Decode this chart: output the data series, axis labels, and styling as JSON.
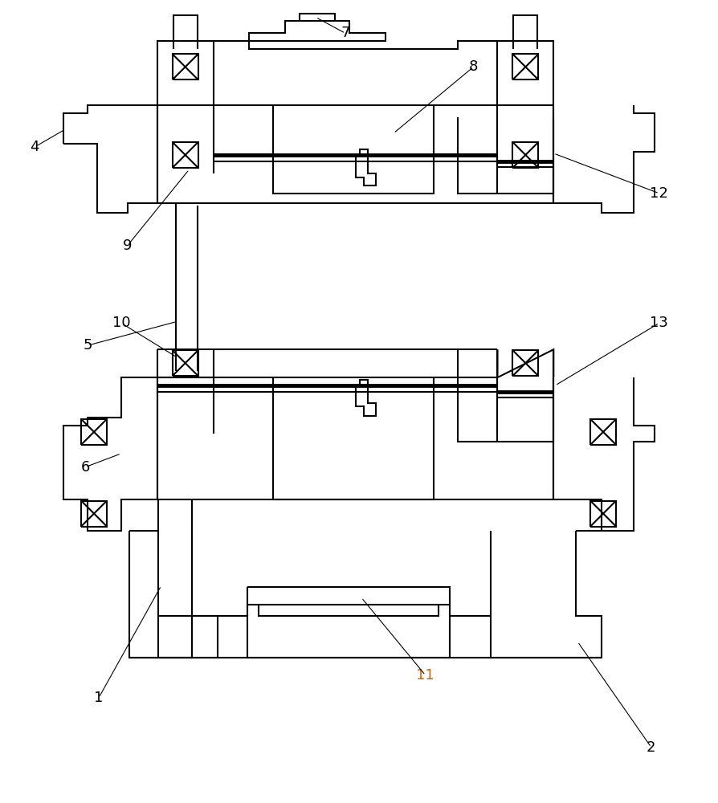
{
  "bg_color": "#ffffff",
  "line_color": "#000000",
  "lw": 1.5,
  "lw_thick": 3.5,
  "fig_w": 8.95,
  "fig_h": 10.0,
  "dpi": 100,
  "font_size": 13,
  "orange_labels": [
    "11"
  ]
}
